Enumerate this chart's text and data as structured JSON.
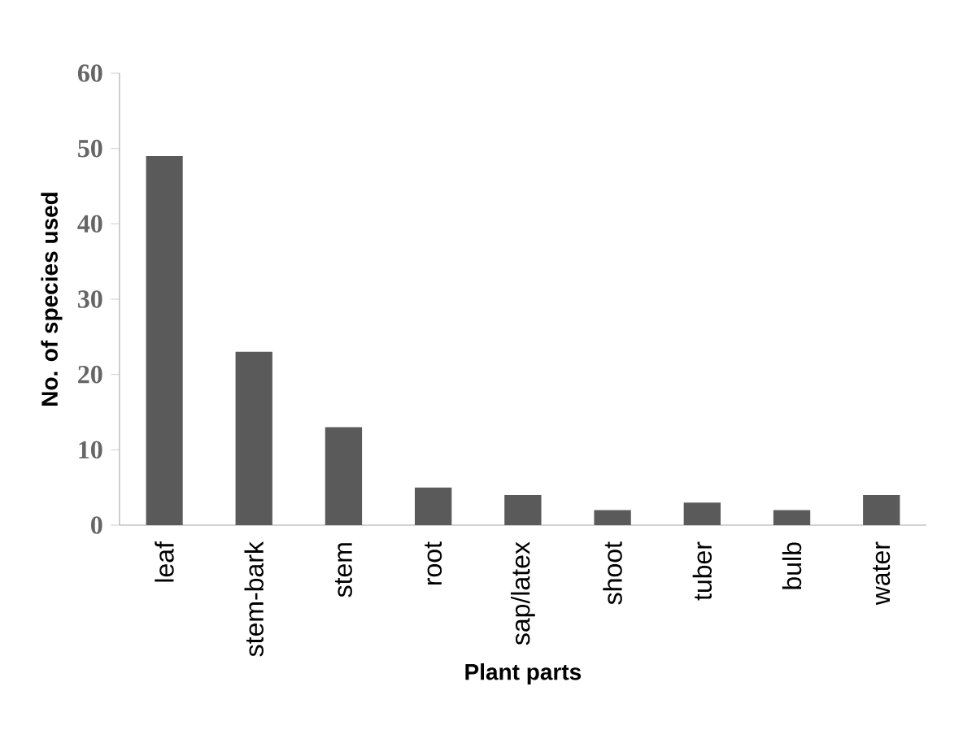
{
  "chart_data": {
    "type": "bar",
    "xlabel": "Plant parts",
    "ylabel": "No. of species used",
    "categories": [
      "leaf",
      "stem-bark",
      "stem",
      "root",
      "sap/latex",
      "shoot",
      "tuber",
      "bulb",
      "water"
    ],
    "values": [
      49,
      23,
      13,
      5,
      4,
      2,
      3,
      2,
      4
    ],
    "color": "#5a5a5a",
    "ylim": [
      0,
      60
    ],
    "yticks": [
      0,
      10,
      20,
      30,
      40,
      50,
      60
    ]
  }
}
